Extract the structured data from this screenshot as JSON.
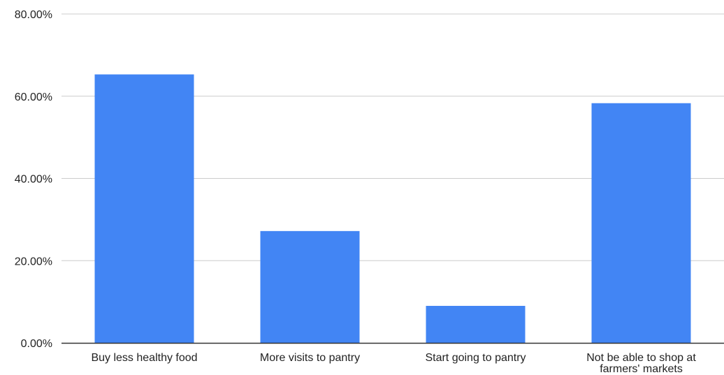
{
  "chart_data": {
    "type": "bar",
    "title": "",
    "xlabel": "",
    "ylabel": "",
    "categories": [
      [
        "Buy less healthy food"
      ],
      [
        "More visits to pantry"
      ],
      [
        "Start going to pantry"
      ],
      [
        "Not be able to shop at",
        "farmers' markets"
      ]
    ],
    "series": [
      {
        "values": [
          65.3,
          27.2,
          9.0,
          58.3
        ]
      }
    ],
    "ylim": [
      0,
      80
    ],
    "yticks": [
      0,
      20,
      40,
      60,
      80
    ],
    "ytick_labels": [
      "0.00%",
      "20.00%",
      "40.00%",
      "60.00%",
      "80.00%"
    ],
    "grid": true,
    "legend": "none",
    "colors": {
      "bar": "#4285f4",
      "grid": "#cccccc",
      "axis": "#333333",
      "text": "#222222"
    }
  }
}
